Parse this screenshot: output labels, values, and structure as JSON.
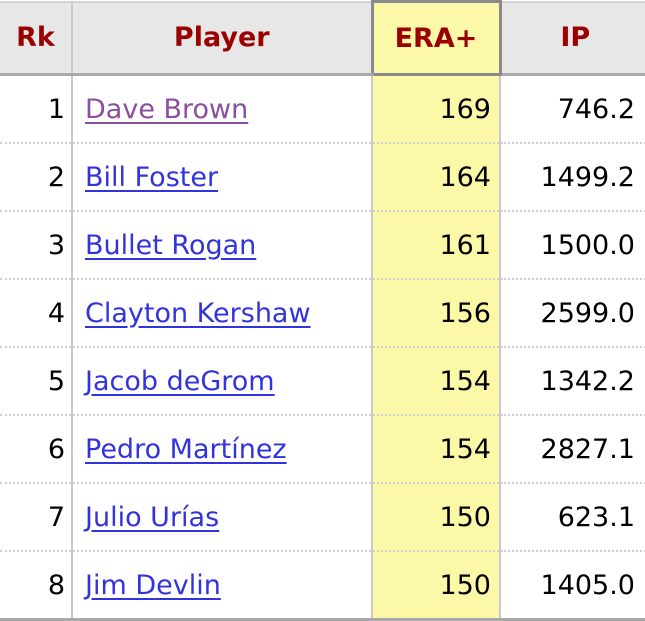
{
  "table": {
    "headers": {
      "rk": "Rk",
      "player": "Player",
      "era_plus": "ERA+",
      "ip": "IP"
    },
    "rows": [
      {
        "rk": "1",
        "player": "Dave Brown",
        "era_plus": "169",
        "ip": "746.2",
        "visited": true
      },
      {
        "rk": "2",
        "player": "Bill Foster",
        "era_plus": "164",
        "ip": "1499.2",
        "visited": false
      },
      {
        "rk": "3",
        "player": "Bullet Rogan",
        "era_plus": "161",
        "ip": "1500.0",
        "visited": false
      },
      {
        "rk": "4",
        "player": "Clayton Kershaw",
        "era_plus": "156",
        "ip": "2599.0",
        "visited": false
      },
      {
        "rk": "5",
        "player": "Jacob deGrom",
        "era_plus": "154",
        "ip": "1342.2",
        "visited": false
      },
      {
        "rk": "6",
        "player": "Pedro Martínez",
        "era_plus": "154",
        "ip": "2827.1",
        "visited": false
      },
      {
        "rk": "7",
        "player": "Julio Urías",
        "era_plus": "150",
        "ip": "623.1",
        "visited": false
      },
      {
        "rk": "8",
        "player": "Jim Devlin",
        "era_plus": "150",
        "ip": "1405.0",
        "visited": false
      }
    ]
  },
  "colors": {
    "header_text": "#9b0000",
    "header_bg": "#e7e7e7",
    "sorted_column_bg": "#fbf8a8",
    "link": "#3333dd",
    "link_visited": "#8a4f9e"
  }
}
